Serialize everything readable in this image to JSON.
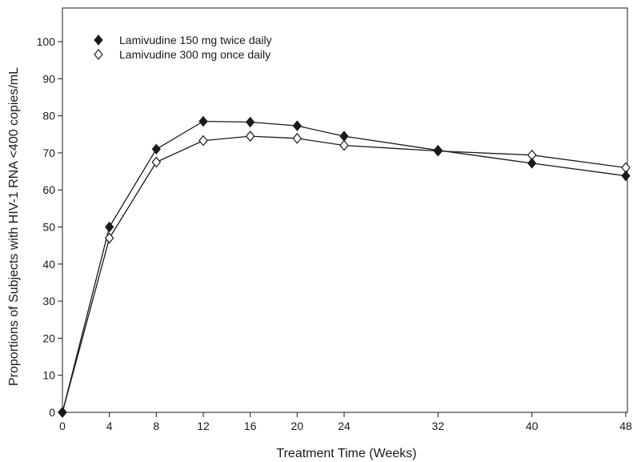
{
  "chart_data": {
    "type": "line",
    "xlabel": "Treatment Time (Weeks)",
    "ylabel": "Proportions of Subjects with HIV-1 RNA <400 copies/mL",
    "xlim": [
      0,
      48
    ],
    "ylim": [
      0,
      110
    ],
    "x_ticks": [
      0,
      4,
      8,
      12,
      16,
      20,
      24,
      32,
      40,
      48
    ],
    "y_ticks": [
      0,
      10,
      20,
      30,
      40,
      50,
      60,
      70,
      80,
      90,
      100
    ],
    "grid": false,
    "legend_position": "top-left",
    "series": [
      {
        "name": "Lamivudine 150 mg twice daily",
        "marker": "filled-diamond",
        "x": [
          0,
          4,
          8,
          12,
          16,
          20,
          24,
          32,
          40,
          48
        ],
        "values": [
          0,
          50,
          71,
          78.5,
          78.3,
          77.3,
          74.5,
          70.7,
          67.2,
          63.8
        ]
      },
      {
        "name": "Lamivudine 300 mg once daily",
        "marker": "open-diamond",
        "x": [
          0,
          4,
          8,
          12,
          16,
          20,
          24,
          32,
          40,
          48
        ],
        "values": [
          0,
          47,
          67.5,
          73.3,
          74.5,
          73.9,
          72,
          70.5,
          69.4,
          66
        ]
      }
    ]
  }
}
